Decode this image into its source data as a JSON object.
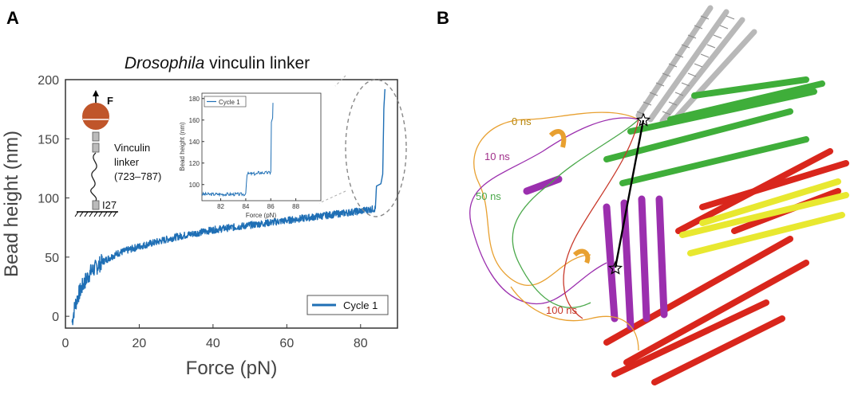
{
  "panels": {
    "a": "A",
    "b": "B"
  },
  "chart_data": {
    "type": "line",
    "title_italic": "Drosophila",
    "title_rest": " vinculin linker",
    "xlabel": "Force (pN)",
    "ylabel": "Bead height (nm)",
    "xlim": [
      0,
      90
    ],
    "ylim": [
      -10,
      200
    ],
    "xticks": [
      0,
      20,
      40,
      60,
      80
    ],
    "yticks": [
      0,
      50,
      100,
      150,
      200
    ],
    "grid": false,
    "legend": "bottom-right",
    "series": [
      {
        "name": "Cycle 1",
        "color": "#1f6fb5",
        "x": [
          1.8,
          2.5,
          3.5,
          5,
          7,
          10,
          14,
          20,
          25,
          30,
          35,
          40,
          45,
          50,
          55,
          60,
          65,
          70,
          75,
          80,
          82,
          84,
          84.3,
          85.5,
          86,
          86.3,
          86.6
        ],
        "y": [
          -5,
          8,
          18,
          28,
          38,
          46,
          53,
          59,
          63,
          67,
          70,
          73,
          75,
          77,
          79,
          81,
          83,
          85,
          87,
          89,
          90,
          91,
          110,
          112,
          120,
          175,
          192
        ]
      }
    ],
    "inset": {
      "xlabel": "Force (pN)",
      "ylabel": "Bead height (nm)",
      "xlim": [
        80.5,
        90
      ],
      "ylim": [
        85,
        185
      ],
      "xticks": [
        82,
        84,
        86,
        88
      ],
      "yticks": [
        100,
        120,
        140,
        160,
        180
      ],
      "legend": "top-left",
      "series": [
        {
          "name": "Cycle 1",
          "x": [
            80.5,
            82,
            83,
            84,
            84.1,
            85,
            86,
            86.05,
            86.15,
            86.2
          ],
          "y": [
            91,
            91,
            91,
            92,
            110,
            111,
            112,
            158,
            162,
            190
          ]
        }
      ]
    }
  },
  "schematic": {
    "force_label": "F",
    "linker_label": [
      "Vinculin",
      "linker",
      "(723–787)"
    ],
    "domain_label": "I27"
  },
  "structure": {
    "time_labels": [
      {
        "text": "0 ns",
        "color": "#b8860b"
      },
      {
        "text": "10 ns",
        "color": "#a0308a"
      },
      {
        "text": "50 ns",
        "color": "#4aa84a"
      },
      {
        "text": "100 ns",
        "color": "#c8382a"
      }
    ],
    "colors": {
      "gray": "#b8b8b8",
      "green": "#3fae3a",
      "red": "#d9261c",
      "yellow": "#e8e830",
      "magenta": "#9b2fae",
      "orange": "#e8a030"
    }
  }
}
